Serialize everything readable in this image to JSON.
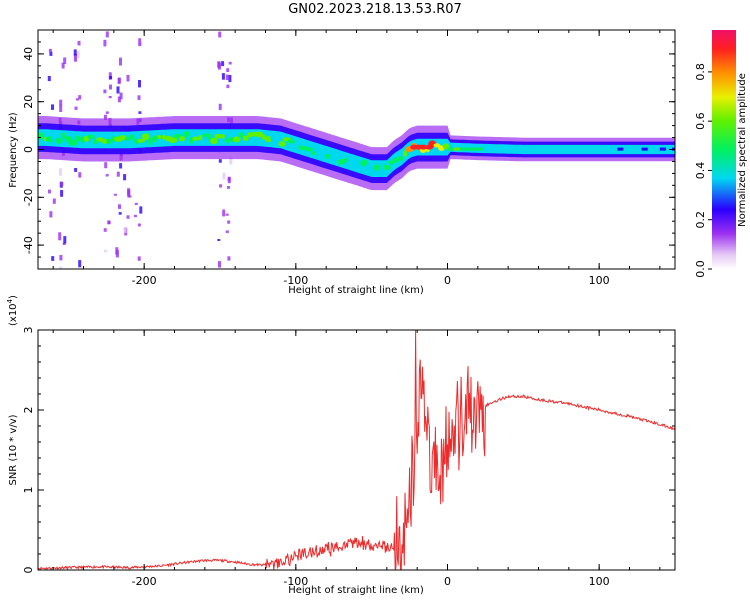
{
  "title": "GN02.2023.218.13.53.R07",
  "colorbar": {
    "label": "Normalized spectral amplitude",
    "ticks": [
      0.0,
      0.2,
      0.4,
      0.6,
      0.8
    ],
    "tick_labels": [
      "0.0",
      "0.2",
      "0.4",
      "0.6",
      "0.8"
    ]
  },
  "chart_data": [
    {
      "type": "heatmap",
      "title": "",
      "xlabel": "Height of straight line (km)",
      "ylabel": "Frequency (Hz)",
      "xlim": [
        -270,
        150
      ],
      "ylim": [
        -50,
        50
      ],
      "xticks": [
        -200,
        -100,
        0,
        100
      ],
      "xtick_labels": [
        "-200",
        "-100",
        "0",
        "100"
      ],
      "yticks": [
        -40,
        -20,
        0,
        20,
        40
      ],
      "ytick_labels": [
        "-40",
        "-20",
        "0",
        "20",
        "40"
      ],
      "colorscale": "rainbow (white-violet-blue-cyan-green-yellow-orange-red-magenta)",
      "ridge": {
        "x": [
          -265,
          -240,
          -210,
          -180,
          -150,
          -125,
          -110,
          -100,
          -90,
          -80,
          -70,
          -60,
          -50,
          -40,
          -35,
          -30,
          -25,
          -20,
          -10,
          0,
          20,
          50,
          100,
          150
        ],
        "freq": [
          5,
          4,
          4,
          5,
          5,
          5,
          4,
          2,
          0,
          -2,
          -4,
          -6,
          -8,
          -8,
          -5,
          -3,
          0,
          1,
          1,
          1,
          0.5,
          0,
          0,
          0
        ],
        "amplitude": [
          0.35,
          0.4,
          0.45,
          0.45,
          0.45,
          0.45,
          0.4,
          0.35,
          0.35,
          0.35,
          0.3,
          0.3,
          0.3,
          0.3,
          0.4,
          0.5,
          0.6,
          0.75,
          0.7,
          0.5,
          0.4,
          0.3,
          0.3,
          0.25
        ]
      }
    },
    {
      "type": "line",
      "title": "",
      "xlabel": "Height of straight line (km)",
      "ylabel": "SNR (10 * v/v)",
      "y_multiplier": "(x10^4)",
      "xlim": [
        -270,
        150
      ],
      "ylim": [
        0,
        3
      ],
      "xticks": [
        -200,
        -100,
        0,
        100
      ],
      "xtick_labels": [
        "-200",
        "-100",
        "0",
        "100"
      ],
      "yticks": [
        0,
        1,
        2,
        3
      ],
      "ytick_labels": [
        "0",
        "1",
        "2",
        "3"
      ],
      "color": "#ee2a2a",
      "series": [
        {
          "x": [
            -270,
            -250,
            -230,
            -210,
            -190,
            -170,
            -160,
            -150,
            -140,
            -130,
            -120,
            -110,
            -100,
            -90,
            -80,
            -70,
            -60,
            -50,
            -40,
            -35,
            -30,
            -25,
            -20,
            -18,
            -15,
            -10,
            -5,
            0,
            5,
            10,
            20,
            30,
            40,
            50,
            60,
            80,
            100,
            120,
            140,
            150
          ],
          "y": [
            0.02,
            0.03,
            0.04,
            0.03,
            0.05,
            0.1,
            0.12,
            0.12,
            0.1,
            0.07,
            0.06,
            0.1,
            0.18,
            0.22,
            0.25,
            0.3,
            0.35,
            0.3,
            0.28,
            0.25,
            0.35,
            0.9,
            1.6,
            2.6,
            1.9,
            1.4,
            1.2,
            1.5,
            1.7,
            1.8,
            2.0,
            2.1,
            2.17,
            2.17,
            2.13,
            2.08,
            2.0,
            1.92,
            1.82,
            1.76
          ]
        }
      ]
    }
  ]
}
